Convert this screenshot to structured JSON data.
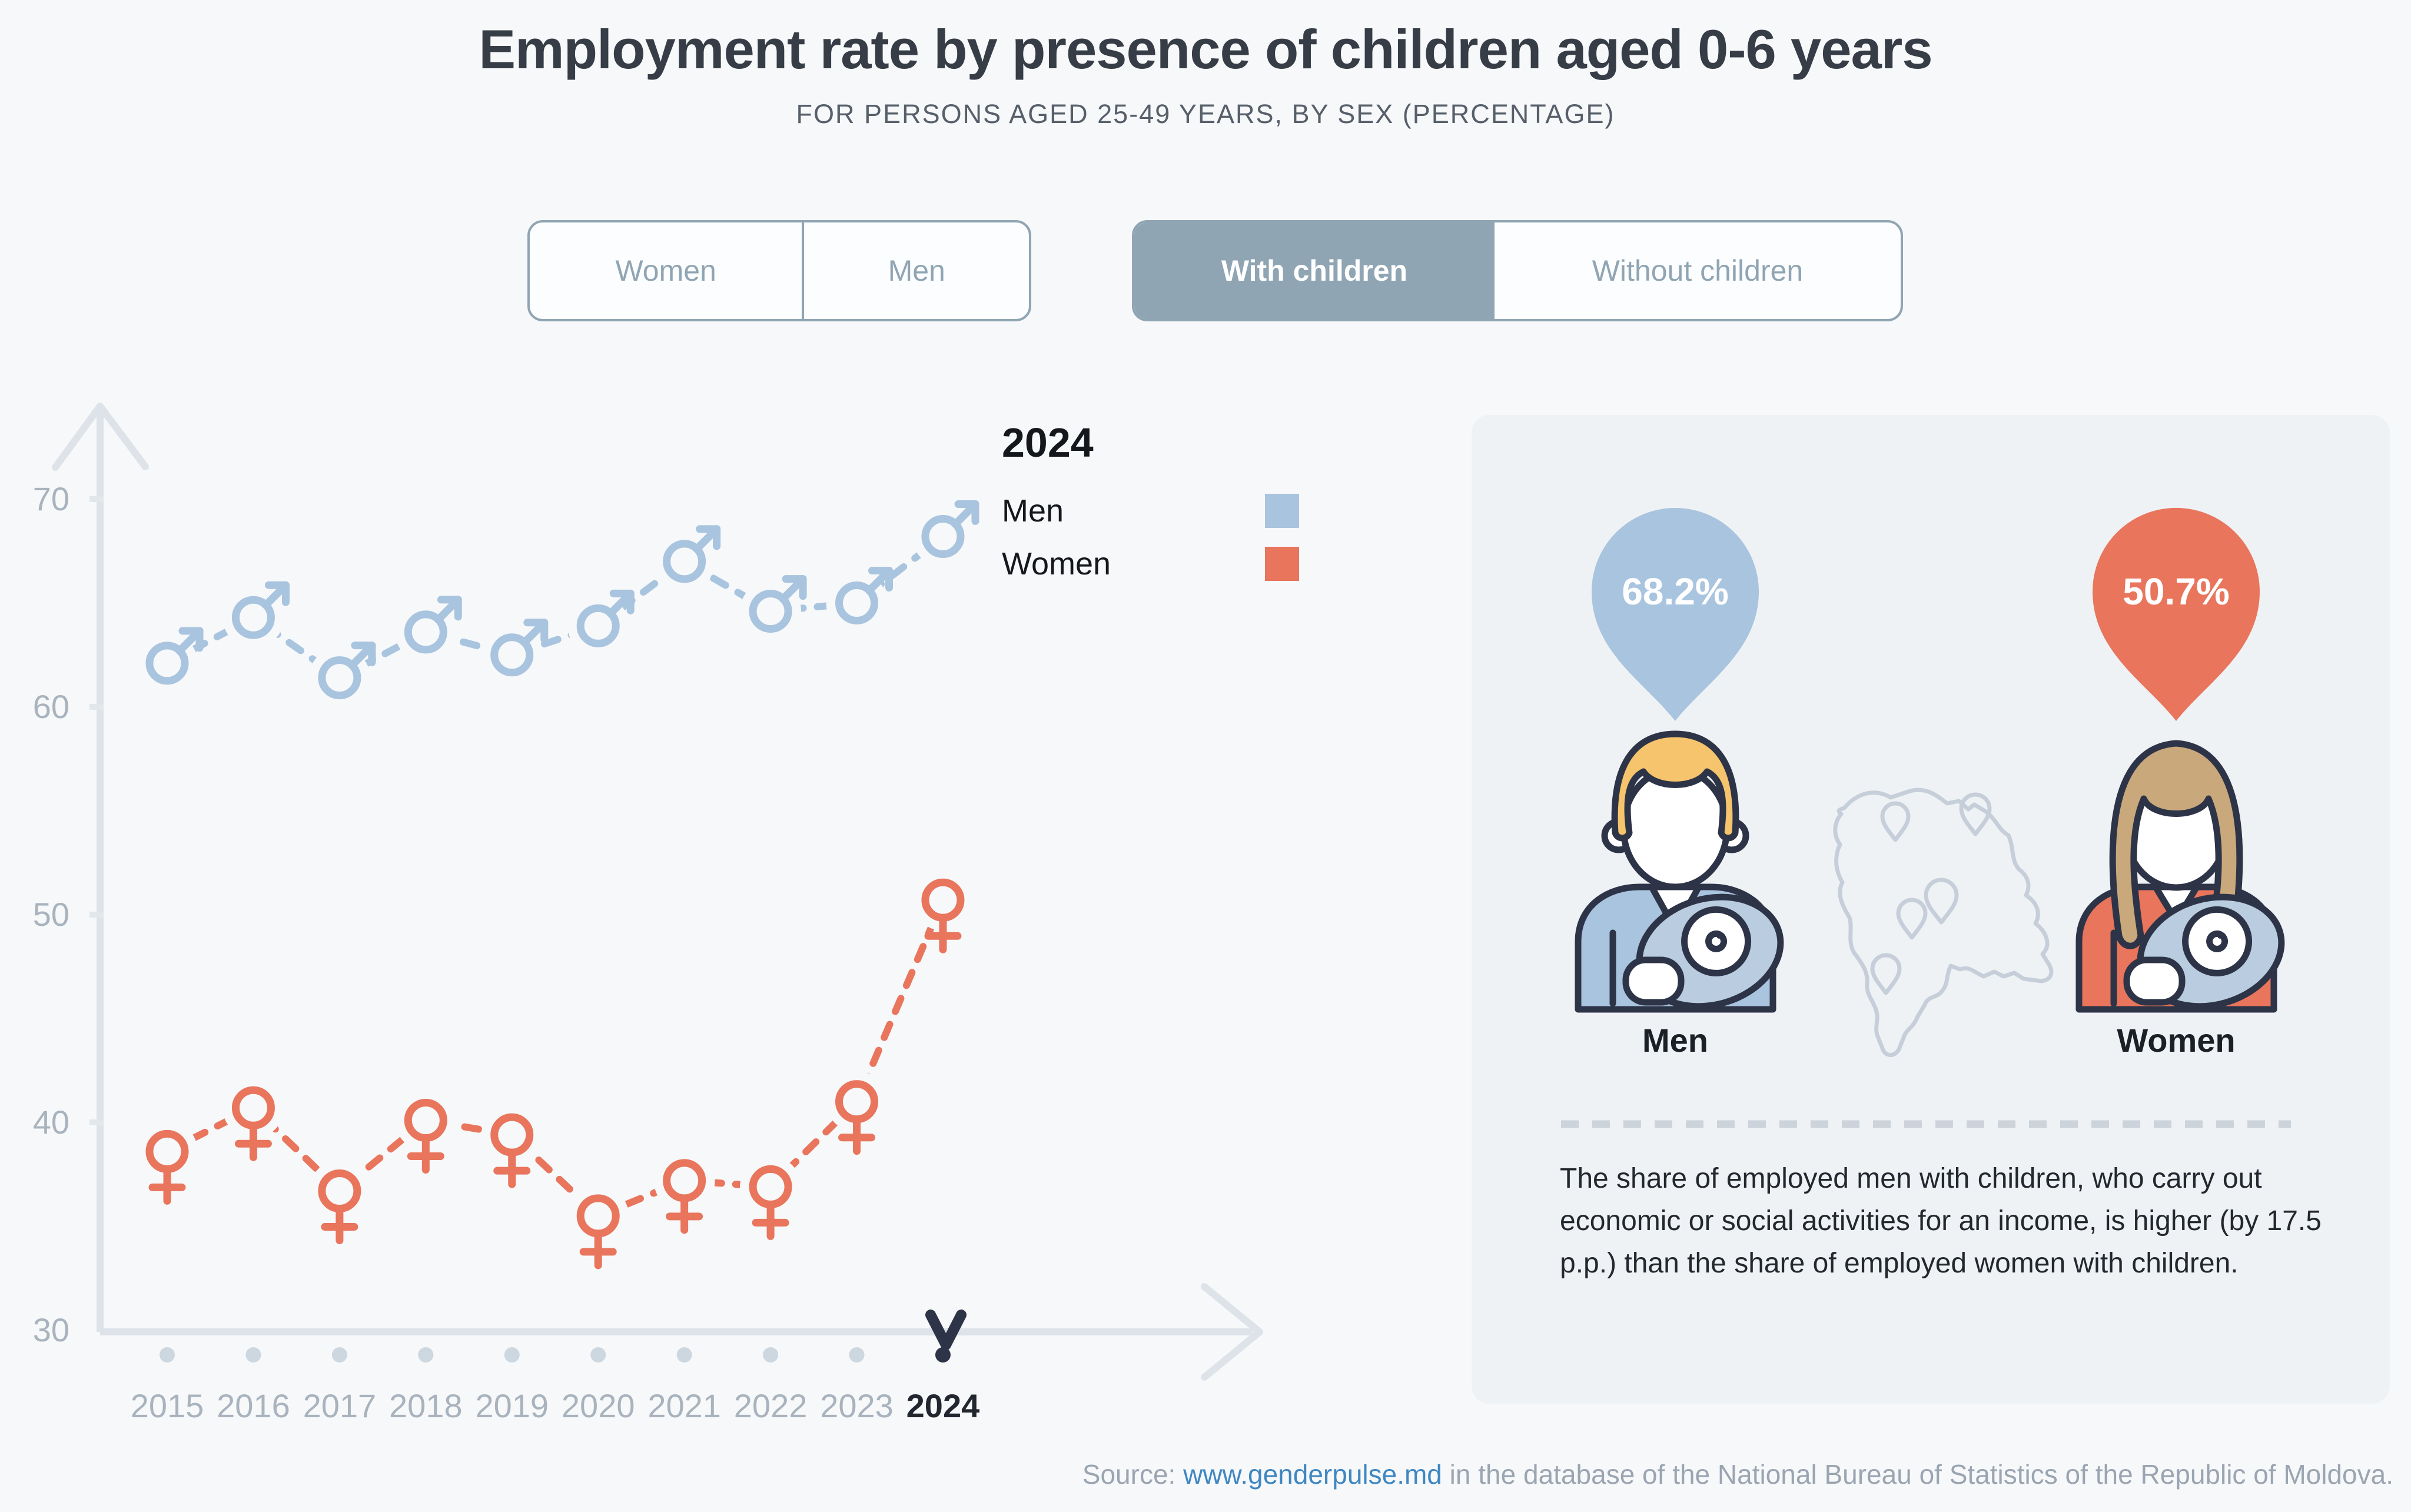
{
  "page": {
    "title": "Employment rate by presence of children aged 0-6 years",
    "subtitle": "FOR PERSONS AGED 25-49 YEARS, BY SEX (PERCENTAGE)",
    "source": {
      "prefix": "Source: ",
      "link": "www.genderpulse.md",
      "suffix": " in the database of the National Bureau of Statistics of the Republic of Moldova."
    }
  },
  "filters": {
    "sex": {
      "options": [
        "Women",
        "Men"
      ],
      "selected": null
    },
    "children": {
      "options": [
        "With children",
        "Without children"
      ],
      "selected": "With children"
    }
  },
  "legend": {
    "year": "2024",
    "items": [
      {
        "label": "Men",
        "color": "#a9c4de"
      },
      {
        "label": "Women",
        "color": "#e8755c"
      }
    ]
  },
  "chart_data": {
    "type": "line",
    "title": "Employment rate by presence of children aged 0-6 years",
    "xlabel": "",
    "ylabel": "Percentage",
    "categories": [
      "2015",
      "2016",
      "2017",
      "2018",
      "2019",
      "2020",
      "2021",
      "2022",
      "2023",
      "2024"
    ],
    "series": [
      {
        "name": "Men",
        "marker": "male",
        "color": "#a9c4de",
        "values": [
          62.1,
          64.3,
          61.4,
          63.6,
          62.5,
          63.9,
          67.0,
          64.6,
          65.0,
          68.2
        ]
      },
      {
        "name": "Women",
        "marker": "female",
        "color": "#e8755c",
        "values": [
          38.6,
          40.7,
          36.7,
          40.1,
          39.4,
          35.5,
          37.2,
          36.9,
          41.0,
          50.7
        ]
      }
    ],
    "ylim": [
      30,
      72
    ],
    "yticks": [
      70,
      60,
      50,
      40,
      30
    ],
    "selected_year": "2024",
    "selected_index": 9,
    "grid": false,
    "line_style": "dashed",
    "legend_position": "top-right"
  },
  "panel": {
    "men_value": "68.2%",
    "women_value": "50.7%",
    "men_label": "Men",
    "women_label": "Women",
    "note": "The share of employed men with children, who carry out economic or social activities for an income, is higher (by 17.5 p.p.) than the share of employed women with children."
  },
  "colors": {
    "page_bg": "#f7f8fa",
    "panel_bg": "#eff2f5",
    "men_blue": "#a9c4de",
    "women_orange": "#e8755c",
    "toggle": "#90a5b3",
    "navy": "#2e3447",
    "axis": "#dde3e9",
    "label_gray": "#a9b3bd",
    "dark_text": "#22262e",
    "link": "#3f87c1",
    "hair_blond": "#f5c46d",
    "hair_brown": "#c9a87c",
    "blanket": "#cfdcea",
    "title": "#373d46",
    "body_text": "#23272e",
    "source_gray": "#9aa5b1"
  }
}
